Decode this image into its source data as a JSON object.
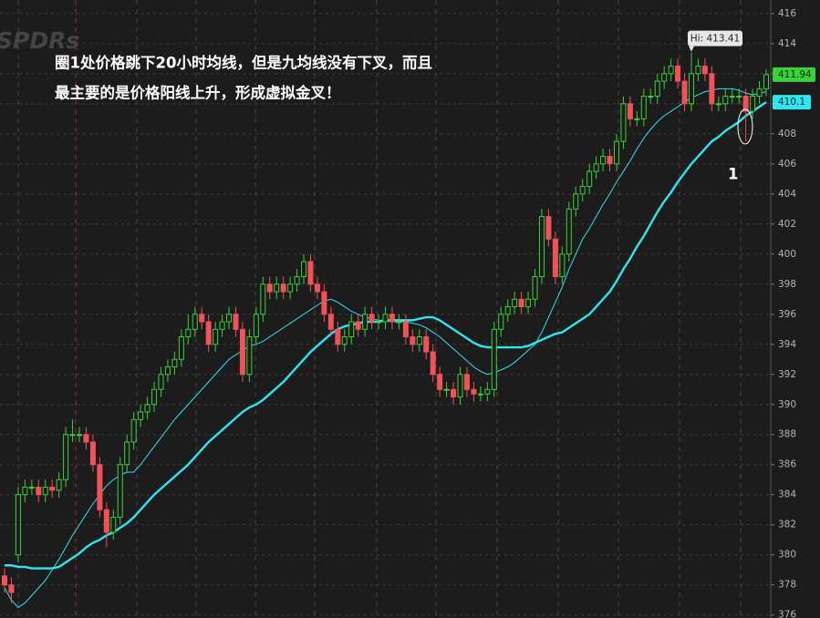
{
  "chart_data": {
    "type": "candlestick",
    "watermark": "SPDRs",
    "annotation_lines": [
      "圈1处价格跳下20小时均线，但是九均线没有下叉，而且",
      "最主要的是价格阳线上升，形成虚拟金叉！"
    ],
    "marker_label": "1",
    "high_label": "Hi: 413.41",
    "up_color": "#3ad13a",
    "down_color": "#f0525a",
    "ylim": [
      375.8,
      416.9
    ],
    "yticks": [
      376,
      378,
      380,
      382,
      384,
      386,
      388,
      390,
      392,
      394,
      396,
      398,
      400,
      402,
      404,
      406,
      408,
      410,
      412,
      414,
      416
    ],
    "grid": true,
    "open": [
      378.6,
      378,
      380,
      384,
      384.5,
      384.5,
      384,
      384.5,
      384.3,
      385,
      388,
      388,
      388,
      387.5,
      386,
      383,
      381.5,
      382.5,
      386,
      387.5,
      389,
      389.5,
      390,
      391,
      392,
      392.5,
      393,
      394.5,
      395,
      396,
      395.5,
      394,
      395,
      395.5,
      396,
      395,
      392,
      394.5,
      396,
      398,
      397.5,
      398,
      397.5,
      398,
      398.5,
      399.5,
      398,
      397.5,
      396,
      395,
      394,
      394.5,
      395.5,
      395,
      396,
      395.5,
      395.5,
      396,
      395.5,
      395.5,
      394.5,
      394,
      394.5,
      393.5,
      392,
      391,
      391,
      390.5,
      392,
      391,
      390.7,
      390.7,
      391,
      395,
      396,
      396.5,
      397,
      396.5,
      397,
      398.5,
      402.5,
      401,
      398.5,
      400,
      403,
      404,
      404.5,
      405.5,
      406,
      406.5,
      406,
      407.5,
      410,
      409,
      409,
      410.5,
      410.5,
      411.5,
      412,
      412.5,
      411.5,
      410,
      412,
      412.5,
      412,
      410,
      410,
      410.5,
      410.5,
      410.5,
      409.5,
      410.5,
      411
    ],
    "high": [
      379.1,
      378.5,
      384.5,
      385,
      385,
      385,
      385,
      385,
      385.5,
      388.5,
      389,
      388.5,
      388.5,
      388,
      386.5,
      383.5,
      383,
      386.5,
      388,
      389.5,
      390,
      390.5,
      391.5,
      392.5,
      393,
      393.5,
      395,
      396,
      396.5,
      396.5,
      396,
      395.5,
      396,
      396.5,
      396.5,
      395.5,
      395,
      396.5,
      398.5,
      398.5,
      398.5,
      398.5,
      398.5,
      399,
      400,
      400,
      398.5,
      398,
      396.5,
      395.5,
      395,
      396,
      396,
      396.5,
      396.5,
      396,
      396.5,
      396.5,
      396,
      396,
      395,
      395,
      395,
      394,
      392.5,
      391.5,
      391.5,
      392.5,
      392.5,
      391.5,
      391.2,
      391.5,
      395.5,
      396.5,
      397,
      397.5,
      397.5,
      397.5,
      399,
      403,
      403,
      401.5,
      400.5,
      403.5,
      404.5,
      405,
      406,
      406.5,
      407,
      407,
      408,
      410.5,
      410.5,
      409.5,
      411,
      411,
      412,
      412.5,
      413,
      413,
      412,
      413.41,
      413,
      413,
      412.5,
      410.5,
      411,
      411,
      411,
      411,
      411,
      411.5,
      412.3
    ],
    "low": [
      377.5,
      376.8,
      379.5,
      383.5,
      384,
      383.5,
      383.5,
      383.8,
      383.8,
      384.5,
      387.5,
      387.5,
      387,
      385.5,
      382.5,
      380.5,
      381,
      382,
      385.5,
      387,
      388.5,
      389,
      389.5,
      390.5,
      391.5,
      392,
      392.5,
      394,
      394.5,
      395,
      393.5,
      393.5,
      394.5,
      395,
      394.5,
      391.5,
      391.5,
      394,
      395.5,
      397,
      397,
      397,
      397,
      397.5,
      398,
      397.5,
      397,
      395.5,
      394.5,
      393.5,
      393.5,
      394,
      394.5,
      394.5,
      395,
      395,
      395,
      395,
      395,
      394,
      393.5,
      393.5,
      393,
      391.5,
      390.5,
      390.5,
      390,
      390,
      390.5,
      390.2,
      390.2,
      390.2,
      390.5,
      394.5,
      395.5,
      396,
      396,
      396,
      396.5,
      398,
      400.5,
      398,
      398,
      399.5,
      402.5,
      403.5,
      404,
      405,
      405.5,
      405.5,
      405.5,
      407,
      408.5,
      408.5,
      408.5,
      410,
      410,
      411,
      411.5,
      411,
      409.5,
      409.5,
      411.5,
      411.5,
      409.5,
      409.5,
      409.5,
      410,
      410,
      407.5,
      409,
      410,
      410.5
    ],
    "close": [
      378,
      377.5,
      384,
      384.5,
      384.5,
      384,
      384.5,
      384.3,
      385,
      388,
      388,
      388,
      387.5,
      386,
      383,
      381.5,
      382.5,
      386,
      387.5,
      389,
      389.5,
      390,
      391,
      392,
      392.5,
      393,
      394.5,
      395,
      396,
      395.5,
      394,
      395,
      395.5,
      396,
      395,
      392,
      394.5,
      396,
      398,
      397.5,
      398,
      397.5,
      398,
      398.5,
      399.5,
      398,
      397.5,
      396,
      395,
      394,
      394.5,
      395.5,
      395,
      396,
      395.5,
      395.5,
      396,
      395.5,
      395.5,
      394.5,
      394,
      394.5,
      393.5,
      392,
      391,
      391,
      390.5,
      392,
      391,
      390.7,
      390.7,
      391,
      395,
      396,
      396.5,
      397,
      396.5,
      397,
      398.5,
      402.5,
      401,
      398.5,
      400,
      403,
      404,
      404.5,
      405.5,
      406,
      406.5,
      406,
      407.5,
      410,
      409,
      409,
      410.5,
      410.5,
      411.5,
      412,
      412.5,
      411.5,
      410,
      412,
      412.5,
      412,
      410,
      410,
      410.5,
      410.5,
      410.5,
      409.5,
      410.5,
      411,
      411.94
    ],
    "lines": [
      {
        "color": "#33e0ec",
        "width": 1,
        "values": [
          377.8,
          377,
          376.5,
          376.8,
          377.3,
          377.8,
          378.3,
          379,
          379.7,
          380.5,
          381.3,
          382,
          382.7,
          383.4,
          384,
          384.6,
          385,
          385.3,
          385.5,
          385.5,
          386,
          386.6,
          387.2,
          387.8,
          388.4,
          389,
          389.5,
          390,
          390.5,
          391,
          391.5,
          392,
          392.5,
          393,
          393.3,
          393.6,
          393.9,
          394,
          394.2,
          394.5,
          394.8,
          395.1,
          395.4,
          395.7,
          396,
          396.3,
          396.6,
          396.9,
          397,
          396.8,
          396.5,
          396.2,
          396,
          395.8,
          395.7,
          395.6,
          395.6,
          395.5,
          395.5,
          395.5,
          395.4,
          395.3,
          395.1,
          394.8,
          394.5,
          394.1,
          393.7,
          393.3,
          392.9,
          392.5,
          392.2,
          392,
          392.1,
          392.3,
          392.5,
          392.8,
          393.2,
          393.6,
          394,
          394.8,
          395.8,
          396.8,
          397.8,
          399,
          400,
          401,
          401.7,
          402.5,
          403.3,
          404,
          404.8,
          405.5,
          406.2,
          407,
          407.7,
          408.3,
          408.8,
          409.2,
          409.5,
          409.8,
          410.1,
          410.4,
          410.6,
          410.8,
          410.9,
          411,
          411,
          411,
          410.9,
          410.7,
          410.6,
          410.7,
          410.8
        ]
      },
      {
        "color": "#2fe6f0",
        "width": 2.4,
        "values": [
          379.3,
          379.3,
          379.2,
          379.2,
          379.1,
          379.1,
          379.1,
          379.1,
          379.2,
          379.5,
          379.8,
          380.1,
          380.5,
          380.8,
          381,
          381.3,
          381.5,
          381.8,
          382.1,
          382.5,
          383,
          383.5,
          384,
          384.4,
          384.8,
          385.2,
          385.6,
          386,
          386.5,
          387,
          387.5,
          387.9,
          388.3,
          388.7,
          389.1,
          389.5,
          389.8,
          390,
          390.3,
          390.7,
          391.1,
          391.5,
          392,
          392.5,
          393,
          393.5,
          393.9,
          394.3,
          394.7,
          395,
          395.2,
          395.3,
          395.4,
          395.5,
          395.5,
          395.5,
          395.6,
          395.6,
          395.6,
          395.6,
          395.6,
          395.7,
          395.8,
          395.8,
          395.6,
          395.3,
          395,
          394.7,
          394.4,
          394.1,
          393.9,
          393.8,
          393.8,
          393.8,
          393.8,
          393.8,
          393.8,
          393.9,
          394.1,
          394.3,
          394.5,
          394.7,
          394.8,
          395.1,
          395.4,
          395.7,
          396,
          396.5,
          397,
          397.5,
          398.2,
          399,
          399.7,
          400.5,
          401.2,
          402,
          402.8,
          403.5,
          404.1,
          404.8,
          405.4,
          406,
          406.5,
          407,
          407.5,
          407.8,
          408.2,
          408.5,
          408.8,
          409.2,
          409.5,
          409.8,
          410.1
        ]
      }
    ]
  }
}
